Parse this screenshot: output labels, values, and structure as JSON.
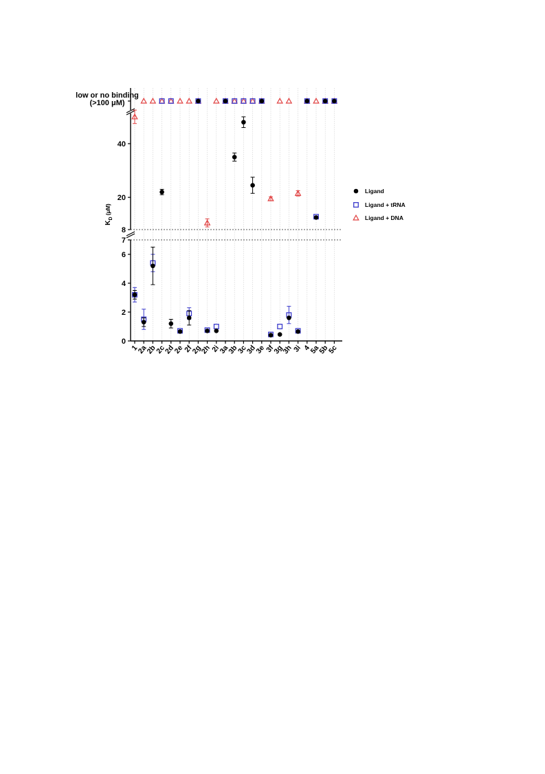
{
  "chart_data": {
    "type": "scatter",
    "ylabel": "K",
    "ylabel_sub": "D",
    "ylabel_unit": " (μM)",
    "top_label_line1": "low or no binding",
    "top_label_line2": "(>100 μM)",
    "categories": [
      "1",
      "2a",
      "2b",
      "2c",
      "2d",
      "2e",
      "2f",
      "2g",
      "2h",
      "2i",
      "3a",
      "3b",
      "3c",
      "3d",
      "3e",
      "3f",
      "3g",
      "3h",
      "3i",
      "4",
      "5a",
      "5b",
      "5c"
    ],
    "axis_segments": {
      "low": {
        "range": [
          0,
          7
        ],
        "ticks": [
          0,
          2,
          4,
          6,
          7
        ]
      },
      "mid": {
        "range": [
          8,
          52
        ],
        "ticks": [
          8,
          20,
          40
        ]
      },
      "top": {
        "label": "low or no binding (>100 μM)"
      }
    },
    "grid": "vertical dotted",
    "legend_position": "right",
    "series": [
      {
        "name": "Ligand",
        "marker": "filled-circle",
        "color": "#000000",
        "points": [
          {
            "cat": "1",
            "y": 3.2,
            "err": 0.3
          },
          {
            "cat": "2a",
            "y": 1.3,
            "err": 0.3
          },
          {
            "cat": "2b",
            "y": 5.2,
            "err": 1.3
          },
          {
            "cat": "2c",
            "y": 22,
            "err": 1
          },
          {
            "cat": "2d",
            "y": 1.2,
            "err": 0.3
          },
          {
            "cat": "2e",
            "y": 0.65,
            "err": 0
          },
          {
            "cat": "2f",
            "y": 1.6,
            "err": 0.5
          },
          {
            "cat": "2g",
            "y": "nb"
          },
          {
            "cat": "2h",
            "y": 0.7,
            "err": 0
          },
          {
            "cat": "2i",
            "y": 0.7,
            "err": 0
          },
          {
            "cat": "3a",
            "y": "nb"
          },
          {
            "cat": "3b",
            "y": 35,
            "err": 1.5
          },
          {
            "cat": "3c",
            "y": 48,
            "err": 2
          },
          {
            "cat": "3d",
            "y": 24.5,
            "err": 3
          },
          {
            "cat": "3e",
            "y": "nb"
          },
          {
            "cat": "3f",
            "y": 0.4,
            "err": 0
          },
          {
            "cat": "3g",
            "y": 0.45,
            "err": 0
          },
          {
            "cat": "3h",
            "y": 1.6,
            "err": 0
          },
          {
            "cat": "3i",
            "y": 0.65,
            "err": 0
          },
          {
            "cat": "4",
            "y": "nb"
          },
          {
            "cat": "5a",
            "y": 12.5,
            "err": 0
          },
          {
            "cat": "5b",
            "y": "nb"
          },
          {
            "cat": "5c",
            "y": "nb"
          }
        ]
      },
      {
        "name": "Ligand + tRNA",
        "marker": "open-square",
        "color": "#3a3acc",
        "points": [
          {
            "cat": "1",
            "y": 3.2,
            "err": 0.5
          },
          {
            "cat": "2a",
            "y": 1.5,
            "err": 0.7
          },
          {
            "cat": "2b",
            "y": 5.4,
            "err": 0.6
          },
          {
            "cat": "2c",
            "y": "nb"
          },
          {
            "cat": "2d",
            "y": "nb"
          },
          {
            "cat": "2e",
            "y": 0.7,
            "err": 0
          },
          {
            "cat": "2f",
            "y": 1.9,
            "err": 0.4
          },
          {
            "cat": "2g",
            "y": "nb"
          },
          {
            "cat": "2h",
            "y": 0.75,
            "err": 0
          },
          {
            "cat": "2i",
            "y": 1.0,
            "err": 0
          },
          {
            "cat": "3a",
            "y": "nb"
          },
          {
            "cat": "3b",
            "y": "nb"
          },
          {
            "cat": "3c",
            "y": "nb"
          },
          {
            "cat": "3d",
            "y": "nb"
          },
          {
            "cat": "3e",
            "y": "nb"
          },
          {
            "cat": "3f",
            "y": 0.45,
            "err": 0
          },
          {
            "cat": "3g",
            "y": 1.0,
            "err": 0
          },
          {
            "cat": "3h",
            "y": 1.8,
            "err": 0.6
          },
          {
            "cat": "3i",
            "y": 0.7,
            "err": 0
          },
          {
            "cat": "4",
            "y": "nb"
          },
          {
            "cat": "5a",
            "y": 12.8,
            "err": 0
          },
          {
            "cat": "5b",
            "y": "nb"
          },
          {
            "cat": "5c",
            "y": "nb"
          }
        ]
      },
      {
        "name": "Ligand + DNA",
        "marker": "open-triangle",
        "color": "#e04040",
        "points": [
          {
            "cat": "1",
            "y": 50,
            "err": 2.5
          },
          {
            "cat": "2a",
            "y": "nb"
          },
          {
            "cat": "2b",
            "y": "nb"
          },
          {
            "cat": "2c",
            "y": "nb"
          },
          {
            "cat": "2d",
            "y": "nb"
          },
          {
            "cat": "2e",
            "y": "nb"
          },
          {
            "cat": "2f",
            "y": "nb"
          },
          {
            "cat": "2g",
            "y": "nb"
          },
          {
            "cat": "2h",
            "y": 10.5,
            "err": 1.5
          },
          {
            "cat": "2i",
            "y": "nb"
          },
          {
            "cat": "3a",
            "y": "nb"
          },
          {
            "cat": "3b",
            "y": "nb"
          },
          {
            "cat": "3c",
            "y": "nb"
          },
          {
            "cat": "3d",
            "y": "nb"
          },
          {
            "cat": "3e",
            "y": "nb"
          },
          {
            "cat": "3f",
            "y": 19.5,
            "err": 0.7
          },
          {
            "cat": "3g",
            "y": "nb"
          },
          {
            "cat": "3h",
            "y": "nb"
          },
          {
            "cat": "3i",
            "y": 21.5,
            "err": 1
          },
          {
            "cat": "4",
            "y": "nb"
          },
          {
            "cat": "5a",
            "y": "nb"
          },
          {
            "cat": "5b",
            "y": "nb"
          },
          {
            "cat": "5c",
            "y": "nb"
          }
        ]
      }
    ]
  }
}
